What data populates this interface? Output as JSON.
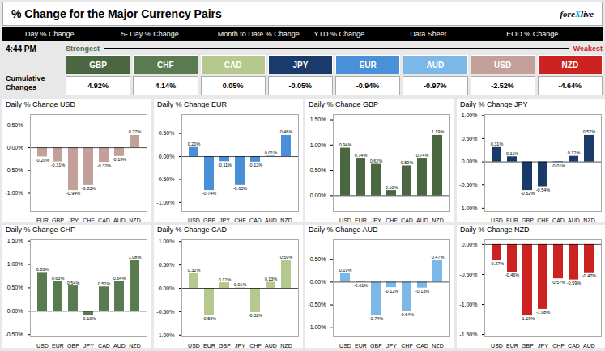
{
  "title": "% Change for the Major Currency Pairs",
  "annotations": [
    {
      "text": "fore",
      "color": "#000000"
    },
    {
      "text": "X",
      "color": "#00aaee"
    },
    {
      "text": "live",
      "color": "#000000"
    },
    {
      "text": "Day % Change"
    },
    {
      "text": "5- Day % Change"
    },
    {
      "text": "Month to Date % Change"
    },
    {
      "text": "YTD % Change"
    },
    {
      "text": "Data Sheet"
    },
    {
      "text": "EOD % Change"
    },
    {
      "text": "4:44 PM"
    },
    {
      "text": "Strongest",
      "color": "#4a6741"
    },
    {
      "text": "Weakest",
      "color": "#cc2222"
    },
    {
      "text": "Cumulative\nChanges"
    }
  ],
  "chart_data": [
    {
      "type": "table",
      "categories": [
        "GBP",
        "CHF",
        "CAD",
        "JPY",
        "EUR",
        "AUD",
        "USD",
        "NZD"
      ],
      "values": [
        4.92,
        4.14,
        0.05,
        -0.05,
        -0.94,
        -0.97,
        -2.52,
        -4.64
      ],
      "value_labels": [
        "4.92%",
        "4.14%",
        "0.05%",
        "-0.05%",
        "-0.94%",
        "-0.97%",
        "-2.52%",
        "-4.64%"
      ],
      "colors": [
        "#4a6741",
        "#5a7a50",
        "#b5c98e",
        "#1a3a6a",
        "#4a90d9",
        "#7bb8e8",
        "#c4a09a",
        "#cc2222"
      ],
      "data_labels": true
    },
    {
      "type": "bar",
      "title": "Daily % Change USD",
      "categories": [
        "EUR",
        "GBP",
        "JPY",
        "CHF",
        "CAD",
        "AUD",
        "NZD"
      ],
      "values": [
        -0.2,
        -0.31,
        -0.94,
        -0.83,
        -0.32,
        -0.19,
        0.27
      ],
      "value_labels": [
        "-0.20%",
        "-0.31%",
        "-0.94%",
        "-0.83%",
        "-0.32%",
        "-0.19%",
        "0.27%"
      ],
      "color": "#c4a09a",
      "ylim": [
        -1.3998,
        0.7298
      ],
      "yticks": [
        {
          "value": -1,
          "label": "-1.00%"
        },
        {
          "value": -0.5,
          "label": "-0.50%"
        },
        {
          "value": 0,
          "label": "0.00%"
        },
        {
          "value": 0.5,
          "label": "0.50%"
        }
      ],
      "grid": false,
      "data_labels": true
    },
    {
      "type": "bar",
      "title": "Daily % Change EUR",
      "categories": [
        "USD",
        "GBP",
        "JPY",
        "CHF",
        "CAD",
        "AUD",
        "NZD"
      ],
      "values": [
        0.2,
        -0.74,
        -0.11,
        -0.63,
        -0.12,
        0.01,
        0.46
      ],
      "value_labels": [
        "0.20%",
        "-0.74%",
        "-0.11%",
        "-0.63%",
        "-0.12%",
        "0.01%",
        "0.46%"
      ],
      "color": "#4a90d9",
      "ylim": [
        -1.196,
        0.916
      ],
      "yticks": [
        {
          "value": -1,
          "label": "-1.00%"
        },
        {
          "value": -0.5,
          "label": "-0.50%"
        },
        {
          "value": 0,
          "label": "0.00%"
        },
        {
          "value": 0.5,
          "label": "0.50%"
        }
      ],
      "grid": false,
      "data_labels": true
    },
    {
      "type": "bar",
      "title": "Daily % Change GBP",
      "categories": [
        "USD",
        "EUR",
        "JPY",
        "CHF",
        "CAD",
        "AUD",
        "NZD"
      ],
      "values": [
        0.94,
        0.74,
        0.62,
        0.1,
        0.59,
        0.74,
        1.19
      ],
      "value_labels": [
        "0.94%",
        "0.74%",
        "0.62%",
        "0.10%",
        "0.59%",
        "0.74%",
        "1.19%"
      ],
      "color": "#4a6741",
      "ylim": [
        -0.3142,
        1.6042
      ],
      "yticks": [
        {
          "value": 0,
          "label": "0.00%"
        },
        {
          "value": 0.5,
          "label": "0.50%"
        },
        {
          "value": 1,
          "label": "1.00%"
        },
        {
          "value": 1.5,
          "label": "1.50%"
        }
      ],
      "grid": false,
      "data_labels": true
    },
    {
      "type": "bar",
      "title": "Daily % Change JPY",
      "categories": [
        "USD",
        "EUR",
        "GBP",
        "CHF",
        "CAD",
        "AUD",
        "NZD"
      ],
      "values": [
        0.31,
        0.11,
        -0.62,
        -0.54,
        -0.01,
        0.12,
        0.57
      ],
      "value_labels": [
        "0.31%",
        "0.11%",
        "-0.62%",
        "-0.54%",
        "-0.01%",
        "0.12%",
        "0.57%"
      ],
      "color": "#1a3a6a",
      "ylim": [
        -1.0722,
        1.0222
      ],
      "yticks": [
        {
          "value": -1,
          "label": "-1.00%"
        },
        {
          "value": -0.5,
          "label": "-0.50%"
        },
        {
          "value": 0,
          "label": "0.00%"
        },
        {
          "value": 0.5,
          "label": "0.50%"
        },
        {
          "value": 1,
          "label": "1.00%"
        }
      ],
      "grid": false,
      "data_labels": true
    },
    {
      "type": "bar",
      "title": "Daily % Change CHF",
      "categories": [
        "USD",
        "EUR",
        "GBP",
        "JPY",
        "CAD",
        "AUD",
        "NZD"
      ],
      "values": [
        0.83,
        0.63,
        0.54,
        -0.1,
        0.52,
        0.64,
        1.08
      ],
      "value_labels": [
        "0.83%",
        "0.63%",
        "0.54%",
        "-0.10%",
        "0.52%",
        "0.64%",
        "1.08%"
      ],
      "color": "#5a7a50",
      "ylim": [
        -0.5484,
        1.5284
      ],
      "yticks": [
        {
          "value": -0.5,
          "label": "-0.50%"
        },
        {
          "value": 0,
          "label": "0.00%"
        },
        {
          "value": 0.5,
          "label": "0.50%"
        },
        {
          "value": 1,
          "label": "1.00%"
        },
        {
          "value": 1.5,
          "label": "1.50%"
        }
      ],
      "grid": false,
      "data_labels": true
    },
    {
      "type": "bar",
      "title": "Daily % Change CAD",
      "categories": [
        "USD",
        "EUR",
        "GBP",
        "JPY",
        "CHF",
        "AUD",
        "NZD"
      ],
      "values": [
        0.32,
        -0.59,
        0.12,
        0.01,
        -0.52,
        0.13,
        0.59
      ],
      "value_labels": [
        "0.32%",
        "-0.59%",
        "0.12%",
        "0.01%",
        "-0.52%",
        "0.13%",
        "0.59%"
      ],
      "color": "#b5c98e",
      "ylim": [
        -1.0384,
        1.0384
      ],
      "yticks": [
        {
          "value": -1,
          "label": "-1.00%"
        },
        {
          "value": -0.5,
          "label": "-0.50%"
        },
        {
          "value": 0,
          "label": "0.00%"
        },
        {
          "value": 0.5,
          "label": "0.50%"
        },
        {
          "value": 1,
          "label": "1.00%"
        }
      ],
      "grid": false,
      "data_labels": true
    },
    {
      "type": "bar",
      "title": "Daily % Change AUD",
      "categories": [
        "USD",
        "EUR",
        "GBP",
        "JPY",
        "CHF",
        "CAD",
        "NZD"
      ],
      "values": [
        0.19,
        -0.01,
        -0.74,
        -0.12,
        -0.64,
        -0.13,
        0.47
      ],
      "value_labels": [
        "0.19%",
        "-0.01%",
        "-0.74%",
        "-0.12%",
        "-0.64%",
        "-0.13%",
        "0.47%"
      ],
      "color": "#7bb8e8",
      "ylim": [
        -1.1998,
        0.9298
      ],
      "yticks": [
        {
          "value": -1,
          "label": "-1.00%"
        },
        {
          "value": -0.5,
          "label": "-0.50%"
        },
        {
          "value": 0,
          "label": "0.00%"
        },
        {
          "value": 0.5,
          "label": "0.50%"
        }
      ],
      "grid": false,
      "data_labels": true
    },
    {
      "type": "bar",
      "title": "Daily % Change NZD",
      "categories": [
        "USD",
        "EUR",
        "GBP",
        "JPY",
        "CHF",
        "CAD",
        "AUD"
      ],
      "values": [
        -0.27,
        -0.46,
        -1.19,
        -1.08,
        -0.57,
        -0.59,
        -0.47
      ],
      "value_labels": [
        "-0.27%",
        "-0.46%",
        "-1.19%",
        "-1.08%",
        "-0.57%",
        "-0.59%",
        "-0.47%"
      ],
      "color": "#cc2222",
      "ylim": [
        -1.5396,
        0.0796
      ],
      "yticks": [
        {
          "value": -1.5,
          "label": "-1.50%"
        },
        {
          "value": -1,
          "label": "-1.00%"
        },
        {
          "value": -0.5,
          "label": "-0.50%"
        },
        {
          "value": 0,
          "label": "0.00%"
        }
      ],
      "grid": false,
      "data_labels": true
    }
  ]
}
